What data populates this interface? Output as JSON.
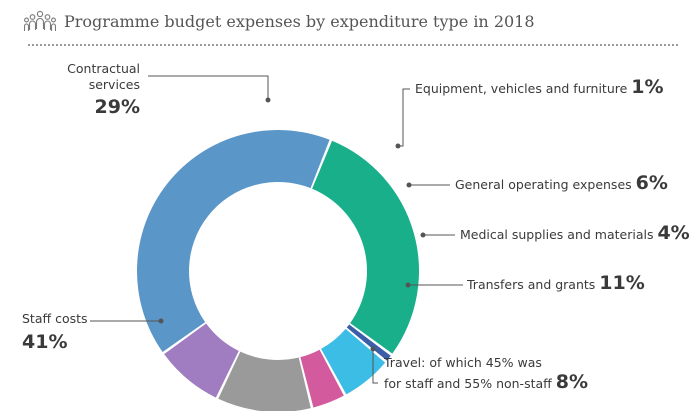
{
  "header": {
    "title": "Programme budget expenses by expenditure type in 2018",
    "icon": "people-group-icon"
  },
  "chart_data": {
    "type": "pie",
    "donut": true,
    "title": "Programme budget expenses by expenditure type in 2018",
    "unit": "%",
    "slices": [
      {
        "label": "Contractual services",
        "label_lines": [
          "Contractual",
          "services"
        ],
        "value": 29,
        "pct_label": "29%",
        "color": "#1aaf8b"
      },
      {
        "label": "Equipment, vehicles and furniture",
        "label_lines": [
          "Equipment, vehicles and furniture"
        ],
        "value": 1,
        "pct_label": "1%",
        "color": "#3a5ea8"
      },
      {
        "label": "General operating expenses",
        "label_lines": [
          "General operating expenses"
        ],
        "value": 6,
        "pct_label": "6%",
        "color": "#3cbde6"
      },
      {
        "label": "Medical supplies and materials",
        "label_lines": [
          "Medical supplies and materials"
        ],
        "value": 4,
        "pct_label": "4%",
        "color": "#d45a9e"
      },
      {
        "label": "Transfers and grants",
        "label_lines": [
          "Transfers and grants"
        ],
        "value": 11,
        "pct_label": "11%",
        "color": "#9a9a9a"
      },
      {
        "label": "Travel: of which 45% was for staff and 55% non-staff",
        "label_lines": [
          "Travel: of which 45% was",
          "for staff and 55% non-staff"
        ],
        "value": 8,
        "pct_label": "8%",
        "color": "#a07cc0"
      },
      {
        "label": "Staff costs",
        "label_lines": [
          "Staff costs"
        ],
        "value": 41,
        "pct_label": "41%",
        "color": "#5b96c8"
      }
    ]
  }
}
